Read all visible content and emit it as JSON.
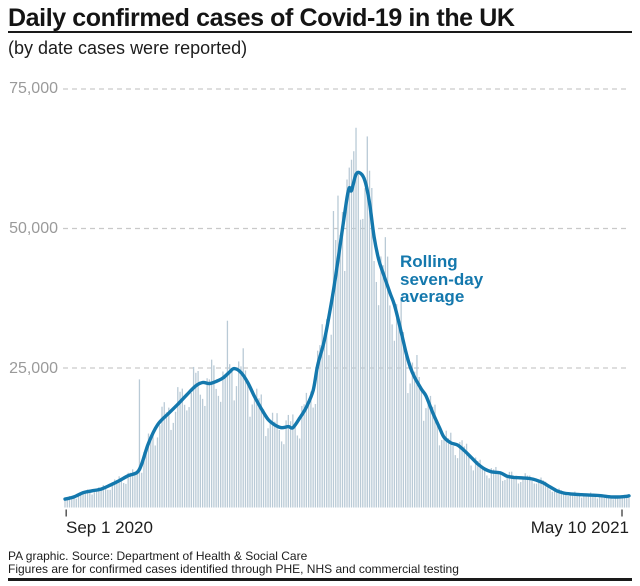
{
  "header": {
    "title": "Daily confirmed cases of Covid-19 in the UK",
    "subtitle": "(by date cases were reported)"
  },
  "footer": {
    "line1": "PA graphic. Source: Department of Health & Social Care",
    "line2": "Figures are for confirmed cases identified through PHE, NHS and commercial testing"
  },
  "colors": {
    "accent_blue": "#1478ad",
    "bar_fill": "#b9cad6",
    "grid": "#c9c9c9",
    "axis_text": "#9a9a9a",
    "tick": "#555555",
    "text_dark": "#1a1a1a"
  },
  "chart_data": {
    "type": "bar",
    "title": "Daily confirmed cases of Covid-19 in the UK",
    "subtitle": "(by date cases were reported)",
    "x_axis": {
      "start_label": "Sep 1 2020",
      "end_label": "May 10 2021",
      "num_days": 251
    },
    "y_axis": {
      "min": 0,
      "max": 78000,
      "ticks": [
        75000,
        50000,
        25000
      ],
      "tick_labels": [
        "75,000",
        "50,000",
        "25,000"
      ],
      "gridline_style": "dashed"
    },
    "annotation": {
      "text": "Rolling\nseven-day\naverage"
    },
    "series": [
      {
        "name": "Daily confirmed cases",
        "type": "bar",
        "color": "#b9cad6",
        "generation": {
          "weekday_factors": [
            1.03,
            1.1,
            1.13,
            1.09,
            0.99,
            0.82,
            0.84
          ],
          "jitter_cycle": [
            1.04,
            0.95,
            1.07,
            0.98,
            1.02,
            0.92,
            1.06,
            0.97,
            1.01,
            0.94,
            1.05
          ],
          "spike_overrides": {
            "33": 22961,
            "72": 33470,
            "119": 53135,
            "121": 55892,
            "125": 58784,
            "126": 60916,
            "127": 62322,
            "129": 68053,
            "130": 59937
          }
        }
      },
      {
        "name": "Rolling seven-day average",
        "type": "line",
        "color": "#1478ad",
        "points": [
          [
            0,
            1500
          ],
          [
            4,
            1900
          ],
          [
            8,
            2650
          ],
          [
            12,
            3000
          ],
          [
            16,
            3300
          ],
          [
            20,
            4000
          ],
          [
            24,
            4800
          ],
          [
            28,
            5700
          ],
          [
            32,
            6300
          ],
          [
            34,
            7800
          ],
          [
            37,
            11500
          ],
          [
            41,
            14800
          ],
          [
            46,
            16900
          ],
          [
            50,
            18500
          ],
          [
            54,
            20200
          ],
          [
            58,
            21800
          ],
          [
            61,
            22400
          ],
          [
            64,
            22200
          ],
          [
            67,
            22600
          ],
          [
            70,
            23200
          ],
          [
            73,
            24300
          ],
          [
            75,
            24900
          ],
          [
            78,
            24200
          ],
          [
            81,
            22400
          ],
          [
            84,
            19900
          ],
          [
            87,
            17700
          ],
          [
            90,
            15800
          ],
          [
            93,
            14800
          ],
          [
            96,
            14300
          ],
          [
            99,
            14500
          ],
          [
            101,
            14300
          ],
          [
            104,
            16000
          ],
          [
            107,
            18000
          ],
          [
            110,
            21000
          ],
          [
            112,
            25500
          ],
          [
            115,
            30000
          ],
          [
            118,
            36500
          ],
          [
            120,
            41500
          ],
          [
            123,
            50000
          ],
          [
            125,
            55500
          ],
          [
            126,
            57300
          ],
          [
            127,
            56800
          ],
          [
            129,
            59700
          ],
          [
            131,
            59900
          ],
          [
            133,
            58500
          ],
          [
            135,
            54500
          ],
          [
            137,
            48500
          ],
          [
            139,
            44500
          ],
          [
            141,
            42000
          ],
          [
            144,
            38500
          ],
          [
            146,
            36300
          ],
          [
            149,
            31500
          ],
          [
            151,
            28000
          ],
          [
            153,
            25200
          ],
          [
            155,
            23300
          ],
          [
            158,
            21200
          ],
          [
            160,
            20000
          ],
          [
            163,
            17000
          ],
          [
            166,
            14300
          ],
          [
            168,
            12600
          ],
          [
            171,
            11600
          ],
          [
            174,
            11200
          ],
          [
            177,
            10200
          ],
          [
            180,
            9000
          ],
          [
            183,
            7800
          ],
          [
            186,
            6900
          ],
          [
            189,
            6400
          ],
          [
            193,
            6200
          ],
          [
            196,
            5600
          ],
          [
            199,
            5400
          ],
          [
            203,
            5300
          ],
          [
            206,
            5200
          ],
          [
            209,
            4900
          ],
          [
            212,
            4400
          ],
          [
            215,
            3700
          ],
          [
            218,
            3000
          ],
          [
            221,
            2600
          ],
          [
            225,
            2400
          ],
          [
            229,
            2300
          ],
          [
            234,
            2200
          ],
          [
            238,
            2100
          ],
          [
            242,
            1900
          ],
          [
            246,
            1900
          ],
          [
            249,
            2000
          ],
          [
            250,
            2100
          ]
        ]
      }
    ]
  }
}
